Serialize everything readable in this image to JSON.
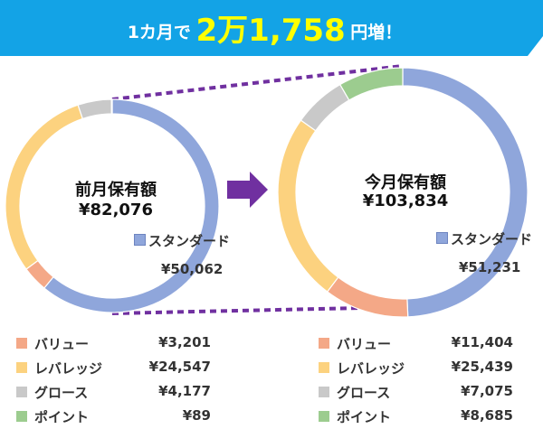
{
  "banner": {
    "text_before": "1カ月で",
    "text_amount": "2万1,758",
    "text_after": "円増！",
    "color": "#13a3e6"
  },
  "colors": {
    "standard": "#8fa6db",
    "value": "#f4a887",
    "leverage": "#fcd27f",
    "growth": "#c9c9c9",
    "point": "#9ccc8f",
    "connector": "#7030a0"
  },
  "chart_data": [
    {
      "type": "pie",
      "variant": "donut",
      "title": "前月保有額",
      "total": "¥82,076",
      "slices": [
        {
          "name": "スタンダード",
          "value": 50062,
          "display": "¥50,062"
        },
        {
          "name": "バリュー",
          "value": 3201,
          "display": "¥3,201"
        },
        {
          "name": "レバレッジ",
          "value": 24547,
          "display": "¥24,547"
        },
        {
          "name": "グロース",
          "value": 4177,
          "display": "¥4,177"
        },
        {
          "name": "ポイント",
          "value": 89,
          "display": "¥89"
        }
      ]
    },
    {
      "type": "pie",
      "variant": "donut",
      "title": "今月保有額",
      "total": "¥103,834",
      "slices": [
        {
          "name": "スタンダード",
          "value": 51231,
          "display": "¥51,231"
        },
        {
          "name": "バリュー",
          "value": 11404,
          "display": "¥11,404"
        },
        {
          "name": "レバレッジ",
          "value": 25439,
          "display": "¥25,439"
        },
        {
          "name": "グロース",
          "value": 7075,
          "display": "¥7,075"
        },
        {
          "name": "ポイント",
          "value": 8685,
          "display": "¥8,685"
        }
      ]
    }
  ]
}
